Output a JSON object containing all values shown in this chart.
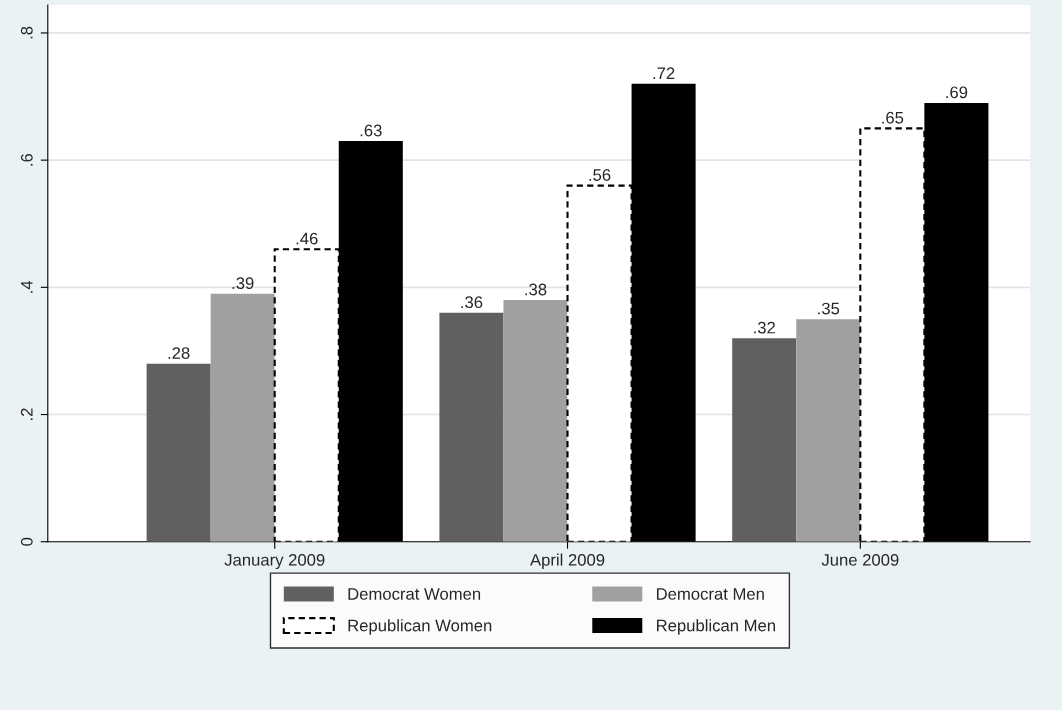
{
  "chart_data": {
    "type": "bar",
    "categories": [
      "January 2009",
      "April 2009",
      "June 2009"
    ],
    "series": [
      {
        "name": "Democrat Women",
        "color": "#606060",
        "values": [
          0.28,
          0.36,
          0.32
        ],
        "value_labels": [
          ".28",
          ".36",
          ".32"
        ]
      },
      {
        "name": "Democrat Men",
        "color": "#a0a0a0",
        "values": [
          0.39,
          0.38,
          0.35
        ],
        "value_labels": [
          ".39",
          ".38",
          ".35"
        ]
      },
      {
        "name": "Republican Women",
        "color": "#ffffff",
        "line_style": "dashed",
        "values": [
          0.46,
          0.56,
          0.65
        ],
        "value_labels": [
          ".46",
          ".56",
          ".65"
        ]
      },
      {
        "name": "Republican Men",
        "color": "#000000",
        "values": [
          0.63,
          0.72,
          0.69
        ],
        "value_labels": [
          ".63",
          ".72",
          ".69"
        ]
      }
    ],
    "ylim": [
      0,
      0.844
    ],
    "yticks": [
      0,
      {
        "value": 0.2,
        "label": ".2"
      },
      {
        "value": 0.4,
        "label": ".4"
      },
      {
        "value": 0.6,
        "label": ".6"
      },
      {
        "value": 0.8,
        "label": ".8"
      }
    ],
    "grid": "y",
    "legend": "bottom"
  }
}
